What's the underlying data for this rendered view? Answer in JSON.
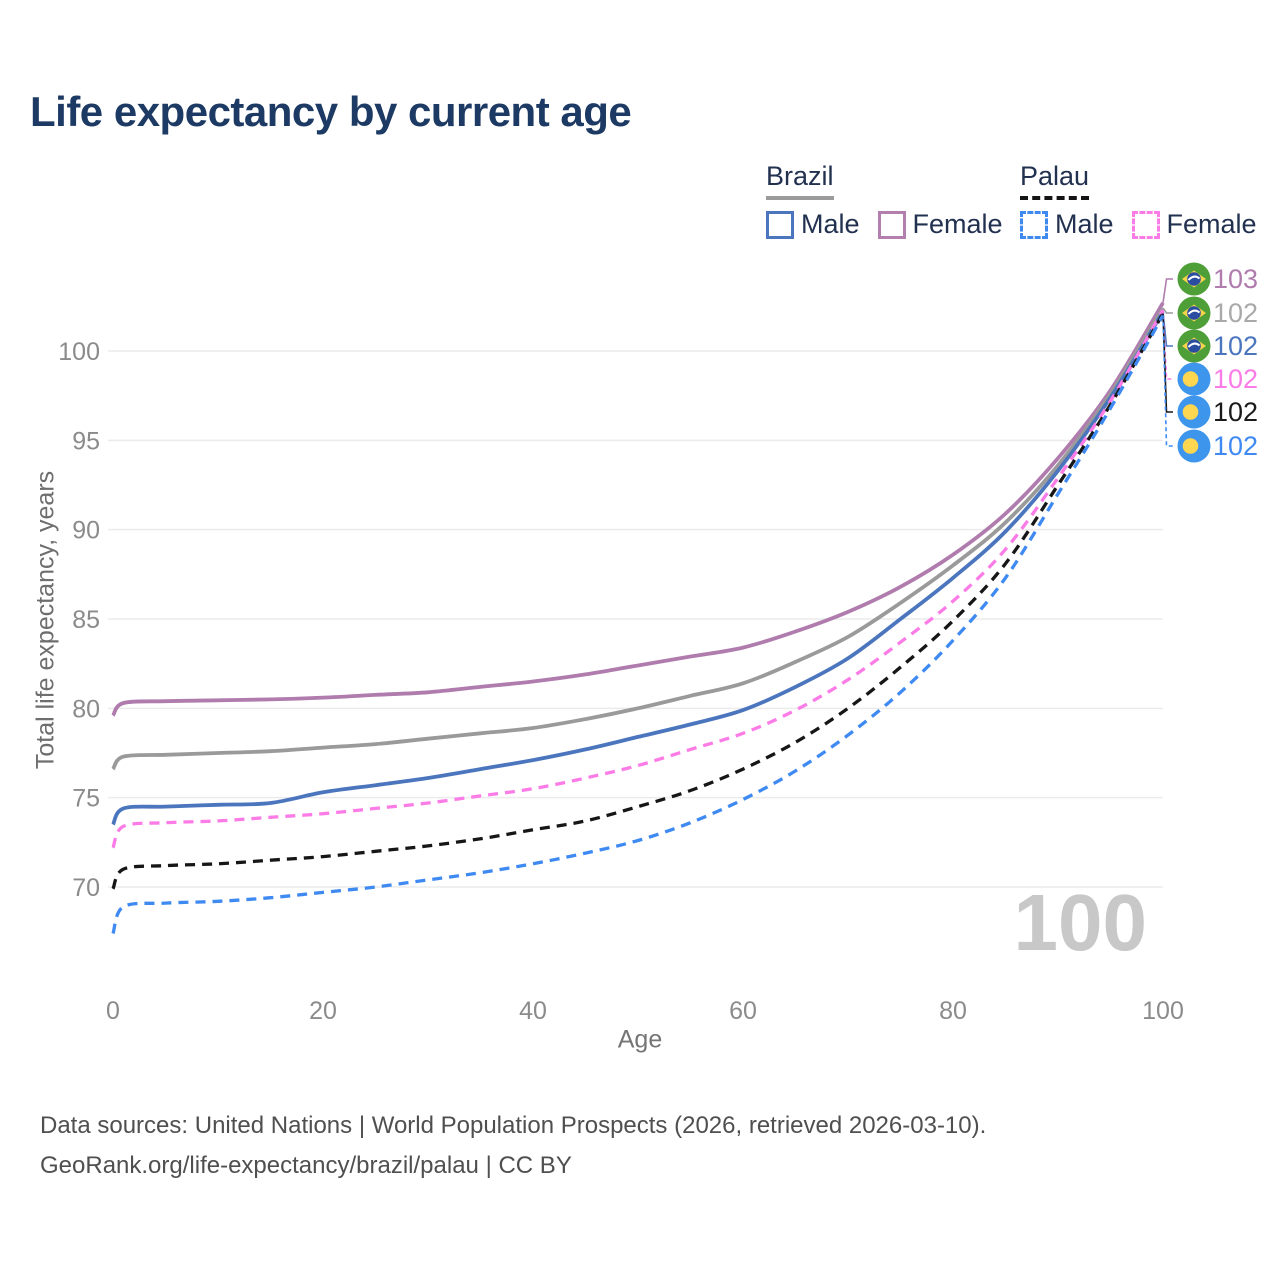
{
  "title": "Life expectancy by current age",
  "legend": {
    "groups": [
      {
        "country": "Brazil",
        "underline_color": "#9b9b9b",
        "underline_style": "solid",
        "items": [
          {
            "label": "Male",
            "color": "#4b76be",
            "style": "solid"
          },
          {
            "label": "Female",
            "color": "#b27fae",
            "style": "solid"
          }
        ]
      },
      {
        "country": "Palau",
        "underline_color": "#141414",
        "underline_style": "dashed",
        "items": [
          {
            "label": "Male",
            "color": "#3f8af2",
            "style": "dashed"
          },
          {
            "label": "Female",
            "color": "#fb7ce6",
            "style": "dashed"
          }
        ]
      }
    ]
  },
  "chart_data": {
    "type": "line",
    "title": "Life expectancy by current age",
    "xlabel": "Age",
    "ylabel": "Total life expectancy, years",
    "xlim": [
      0,
      100
    ],
    "ylim": [
      67,
      103
    ],
    "xticks": [
      0,
      20,
      40,
      60,
      80,
      100
    ],
    "yticks": [
      70,
      75,
      80,
      85,
      90,
      95,
      100
    ],
    "grid": "horizontal-only",
    "legend_position": "top-right",
    "watermark": "100",
    "x": [
      0,
      1,
      5,
      10,
      15,
      20,
      25,
      30,
      35,
      40,
      45,
      50,
      55,
      60,
      65,
      70,
      75,
      80,
      85,
      90,
      95,
      100
    ],
    "series": [
      {
        "name": "Brazil Female",
        "country": "Brazil",
        "sex": "Female",
        "color": "#b07cae",
        "dashed": false,
        "flag": "brazil",
        "end_label": "103",
        "label_color": "#b07cae",
        "values": [
          79.6,
          80.3,
          80.4,
          80.45,
          80.5,
          80.6,
          80.75,
          80.9,
          81.2,
          81.5,
          81.9,
          82.4,
          82.9,
          83.4,
          84.3,
          85.4,
          86.8,
          88.6,
          90.9,
          94.0,
          97.8,
          102.7
        ]
      },
      {
        "name": "Brazil Total",
        "country": "Brazil",
        "sex": "Both",
        "color": "#9a9a9a",
        "dashed": false,
        "flag": "brazil",
        "end_label": "102",
        "label_color": "#a9a9a9",
        "values": [
          76.6,
          77.3,
          77.4,
          77.5,
          77.6,
          77.8,
          78.0,
          78.3,
          78.6,
          78.9,
          79.4,
          80.0,
          80.7,
          81.4,
          82.6,
          84.0,
          85.9,
          88.0,
          90.4,
          93.6,
          97.6,
          102.4
        ]
      },
      {
        "name": "Brazil Male",
        "country": "Brazil",
        "sex": "Male",
        "color": "#4b76be",
        "dashed": false,
        "flag": "brazil",
        "end_label": "102",
        "label_color": "#4b76be",
        "values": [
          73.5,
          74.4,
          74.5,
          74.6,
          74.7,
          75.3,
          75.7,
          76.1,
          76.6,
          77.1,
          77.7,
          78.4,
          79.1,
          79.9,
          81.2,
          82.8,
          85.0,
          87.3,
          89.9,
          93.3,
          97.4,
          102.2
        ]
      },
      {
        "name": "Palau Female",
        "country": "Palau",
        "sex": "Female",
        "color": "#fb7ce6",
        "dashed": true,
        "flag": "palau",
        "end_label": "102",
        "label_color": "#fb7ce6",
        "values": [
          72.2,
          73.4,
          73.6,
          73.7,
          73.9,
          74.1,
          74.4,
          74.7,
          75.1,
          75.5,
          76.1,
          76.8,
          77.7,
          78.6,
          79.9,
          81.6,
          83.7,
          86.0,
          88.9,
          92.9,
          97.2,
          102.3
        ]
      },
      {
        "name": "Palau Total",
        "country": "Palau",
        "sex": "Both",
        "color": "#161616",
        "dashed": true,
        "flag": "palau",
        "end_label": "102",
        "label_color": "#1a1a1a",
        "values": [
          69.9,
          71.0,
          71.2,
          71.3,
          71.5,
          71.7,
          72.0,
          72.3,
          72.7,
          73.2,
          73.7,
          74.5,
          75.4,
          76.6,
          78.1,
          80.0,
          82.3,
          84.9,
          88.1,
          92.5,
          97.0,
          102.1
        ]
      },
      {
        "name": "Palau Male",
        "country": "Palau",
        "sex": "Male",
        "color": "#3f8af2",
        "dashed": true,
        "flag": "palau",
        "end_label": "102",
        "label_color": "#3f8af2",
        "values": [
          67.4,
          68.9,
          69.1,
          69.2,
          69.4,
          69.7,
          70.0,
          70.4,
          70.8,
          71.3,
          71.9,
          72.6,
          73.6,
          74.9,
          76.5,
          78.5,
          80.9,
          83.8,
          87.3,
          92.0,
          96.8,
          102.0
        ]
      }
    ]
  },
  "footer": {
    "line1": "Data sources: United Nations | World Population Prospects (2026, retrieved 2026-03-10).",
    "line2": "GeoRank.org/life-expectancy/brazil/palau | CC BY"
  }
}
